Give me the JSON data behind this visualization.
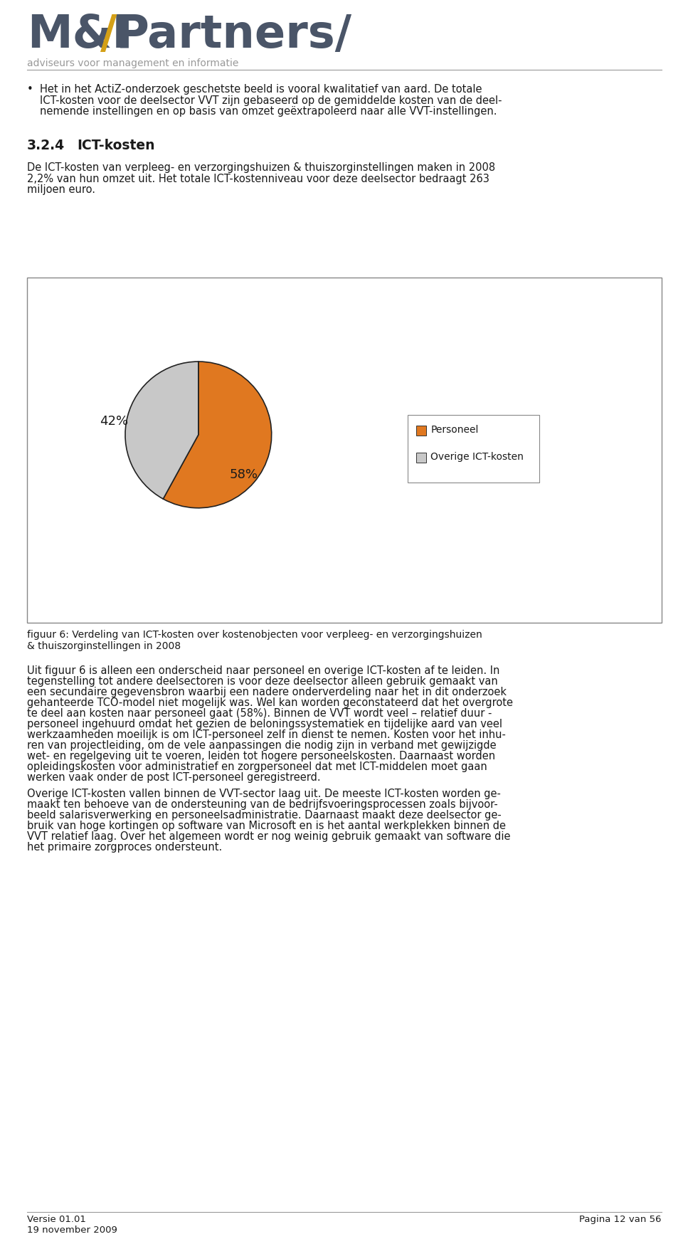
{
  "page_bg": "#ffffff",
  "logo_color_mni": "#4a5568",
  "logo_color_slash": "#d4a017",
  "logo_color_partners": "#4a5568",
  "logo_subtitle": "adviseurs voor management en informatie",
  "bullet_text_line1": "Het in het ActiZ-onderzoek geschetste beeld is vooral kwalitatief van aard. De totale",
  "bullet_text_line2": "ICT-kosten voor de deelsector VVT zijn gebaseerd op de gemiddelde kosten van de deel-",
  "bullet_text_line3": "nemende instellingen en op basis van omzet geëxtrapoleerd naar alle VVT-instellingen.",
  "section_title": "3.2.4",
  "section_title2": "ICT-kosten",
  "section_body_line1": "De ICT-kosten van verpleeg- en verzorgingshuizen & thuiszorginstellingen maken in 2008",
  "section_body_line2": "2,2% van hun omzet uit. Het totale ICT-kostenniveau voor deze deelsector bedraagt 263",
  "section_body_line3": "miljoen euro.",
  "pie_values": [
    58,
    42
  ],
  "pie_colors": [
    "#e07820",
    "#c8c8c8"
  ],
  "pie_pct_58": "58%",
  "pie_pct_42": "42%",
  "legend_labels": [
    "Personeel",
    "Overige ICT-kosten"
  ],
  "fig_caption_line1": "figuur 6: Verdeling van ICT-kosten over kostenobjecten voor verpleeg- en verzorgingshuizen",
  "fig_caption_line2": "& thuiszorginstellingen in 2008",
  "body1_lines": [
    "Uit figuur 6 is alleen een onderscheid naar personeel en overige ICT-kosten af te leiden. In",
    "tegenstelling tot andere deelsectoren is voor deze deelsector alleen gebruik gemaakt van",
    "een secundaire gegevensbron waarbij een nadere onderverdeling naar het in dit onderzoek",
    "gehanteerde TCO-model niet mogelijk was. Wel kan worden geconstateerd dat het overgrote",
    "te deel aan kosten naar personeel gaat (58%). Binnen de VVT wordt veel – relatief duur -",
    "personeel ingehuurd omdat het gezien de beloningssystematiek en tijdelijke aard van veel",
    "werkzaamheden moeilijk is om ICT-personeel zelf in dienst te nemen. Kosten voor het inhu-",
    "ren van projectleiding, om de vele aanpassingen die nodig zijn in verband met gewijzigde",
    "wet- en regelgeving uit te voeren, leiden tot hogere personeelskosten. Daarnaast worden",
    "opleidingskosten voor administratief en zorgpersoneel dat met ICT-middelen moet gaan",
    "werken vaak onder de post ICT-personeel geregistreerd."
  ],
  "body2_lines": [
    "Overige ICT-kosten vallen binnen de VVT-sector laag uit. De meeste ICT-kosten worden ge-",
    "maakt ten behoeve van de ondersteuning van de bedrijfsvoeringsprocessen zoals bijvoor-",
    "beeld salarisverwerking en personeelsadministratie. Daarnaast maakt deze deelsector ge-",
    "bruik van hoge kortingen op software van Microsoft en is het aantal werkplekken binnen de",
    "VVT relatief laag. Over het algemeen wordt er nog weinig gebruik gemaakt van software die",
    "het primaire zorgproces ondersteunt."
  ],
  "footer_left_1": "Versie 01.01",
  "footer_left_2": "19 november 2009",
  "footer_right": "Pagina 12 van 56",
  "text_color": "#1a1a1a",
  "line_color": "#999999"
}
